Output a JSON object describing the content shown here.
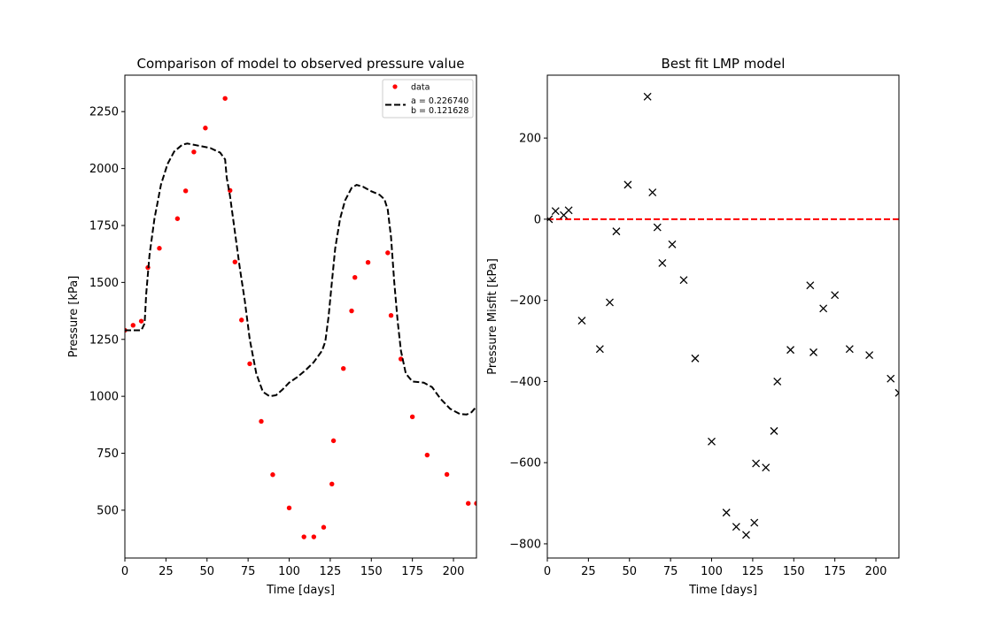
{
  "chart_data": [
    {
      "type": "scatter",
      "title": "Comparison of model to observed pressure value",
      "xlabel": "Time [days]",
      "ylabel": "Pressure [kPa]",
      "xlim": [
        0,
        214
      ],
      "ylim": [
        290,
        2410
      ],
      "xticks": [
        0,
        25,
        50,
        75,
        100,
        125,
        150,
        175,
        200
      ],
      "yticks": [
        500,
        750,
        1000,
        1250,
        1500,
        1750,
        2000,
        2250
      ],
      "legend_position": "upper right",
      "series": [
        {
          "name": "data",
          "style": "red-dots",
          "color": "#ff0000",
          "points": [
            [
              0,
              1290
            ],
            [
              5,
              1312
            ],
            [
              10,
              1330
            ],
            [
              14,
              1565
            ],
            [
              21,
              1650
            ],
            [
              32,
              1780
            ],
            [
              37,
              1902
            ],
            [
              42,
              2073
            ],
            [
              49,
              2178
            ],
            [
              61,
              2308
            ],
            [
              64,
              1904
            ],
            [
              67,
              1590
            ],
            [
              71,
              1335
            ],
            [
              76,
              1143
            ],
            [
              83,
              890
            ],
            [
              90,
              656
            ],
            [
              100,
              510
            ],
            [
              109,
              383
            ],
            [
              115,
              383
            ],
            [
              121,
              425
            ],
            [
              126,
              615
            ],
            [
              127,
              805
            ],
            [
              133,
              1122
            ],
            [
              138,
              1375
            ],
            [
              140,
              1522
            ],
            [
              148,
              1588
            ],
            [
              160,
              1630
            ],
            [
              162,
              1355
            ],
            [
              168,
              1164
            ],
            [
              175,
              910
            ],
            [
              184,
              742
            ],
            [
              196,
              657
            ],
            [
              209,
              530
            ],
            [
              214,
              530
            ]
          ]
        },
        {
          "name": "a = 0.226740\nb = 0.121628",
          "style": "black-dashed-line",
          "color": "#000000",
          "points": [
            [
              0,
              1290
            ],
            [
              10,
              1290
            ],
            [
              12,
              1320
            ],
            [
              13,
              1450
            ],
            [
              15,
              1620
            ],
            [
              18,
              1780
            ],
            [
              22,
              1930
            ],
            [
              26,
              2020
            ],
            [
              30,
              2075
            ],
            [
              35,
              2105
            ],
            [
              38,
              2110
            ],
            [
              45,
              2100
            ],
            [
              52,
              2090
            ],
            [
              58,
              2070
            ],
            [
              61,
              2040
            ],
            [
              62,
              1960
            ],
            [
              64,
              1880
            ],
            [
              67,
              1720
            ],
            [
              70,
              1560
            ],
            [
              73,
              1420
            ],
            [
              76,
              1250
            ],
            [
              80,
              1100
            ],
            [
              84,
              1020
            ],
            [
              88,
              1000
            ],
            [
              92,
              1005
            ],
            [
              96,
              1030
            ],
            [
              100,
              1060
            ],
            [
              105,
              1085
            ],
            [
              110,
              1115
            ],
            [
              115,
              1150
            ],
            [
              120,
              1200
            ],
            [
              122,
              1240
            ],
            [
              124,
              1350
            ],
            [
              126,
              1500
            ],
            [
              128,
              1650
            ],
            [
              131,
              1780
            ],
            [
              134,
              1860
            ],
            [
              138,
              1915
            ],
            [
              141,
              1928
            ],
            [
              145,
              1920
            ],
            [
              150,
              1900
            ],
            [
              155,
              1885
            ],
            [
              158,
              1865
            ],
            [
              160,
              1820
            ],
            [
              162,
              1700
            ],
            [
              164,
              1500
            ],
            [
              166,
              1330
            ],
            [
              168,
              1200
            ],
            [
              171,
              1100
            ],
            [
              175,
              1065
            ],
            [
              182,
              1060
            ],
            [
              187,
              1040
            ],
            [
              192,
              990
            ],
            [
              198,
              945
            ],
            [
              204,
              922
            ],
            [
              208,
              920
            ],
            [
              211,
              930
            ],
            [
              214,
              955
            ]
          ]
        }
      ]
    },
    {
      "type": "scatter",
      "title": "Best fit LMP model",
      "xlabel": "Time [days]",
      "ylabel": "Pressure Misfit [kPa]",
      "xlim": [
        0,
        214
      ],
      "ylim": [
        -835,
        355
      ],
      "xticks": [
        0,
        25,
        50,
        75,
        100,
        125,
        150,
        175,
        200
      ],
      "yticks": [
        -800,
        -600,
        -400,
        -200,
        0,
        200
      ],
      "reference_line": {
        "y": 0,
        "color": "#ff0000",
        "style": "dashed"
      },
      "series": [
        {
          "name": "",
          "style": "black-x-markers",
          "color": "#000000",
          "points": [
            [
              1,
              0
            ],
            [
              5,
              20
            ],
            [
              10,
              10
            ],
            [
              13,
              22
            ],
            [
              21,
              -250
            ],
            [
              32,
              -320
            ],
            [
              38,
              -205
            ],
            [
              42,
              -30
            ],
            [
              49,
              85
            ],
            [
              61,
              302
            ],
            [
              64,
              66
            ],
            [
              67,
              -20
            ],
            [
              70,
              -108
            ],
            [
              76,
              -62
            ],
            [
              83,
              -150
            ],
            [
              90,
              -343
            ],
            [
              100,
              -548
            ],
            [
              109,
              -723
            ],
            [
              115,
              -758
            ],
            [
              121,
              -778
            ],
            [
              126,
              -748
            ],
            [
              127,
              -602
            ],
            [
              133,
              -612
            ],
            [
              138,
              -522
            ],
            [
              140,
              -400
            ],
            [
              148,
              -322
            ],
            [
              160,
              -163
            ],
            [
              162,
              -328
            ],
            [
              168,
              -220
            ],
            [
              175,
              -187
            ],
            [
              184,
              -320
            ],
            [
              196,
              -335
            ],
            [
              209,
              -393
            ],
            [
              214,
              -428
            ]
          ]
        }
      ]
    }
  ]
}
